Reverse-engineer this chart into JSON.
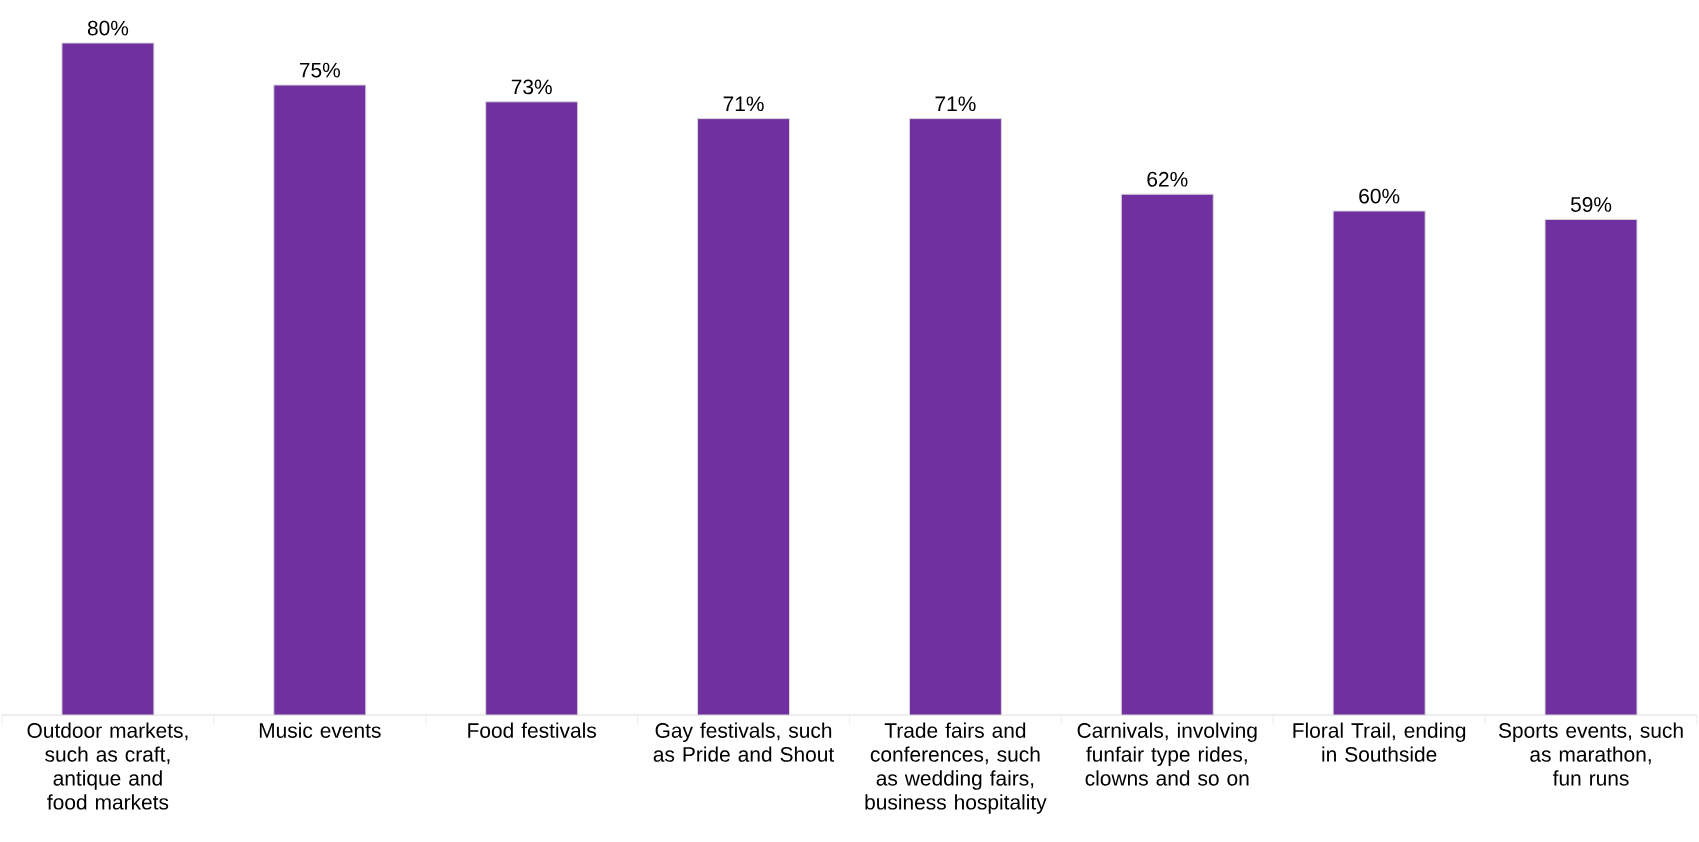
{
  "chart_data": {
    "type": "bar",
    "relative": false,
    "categories": [
      "Outdoor markets, such as craft, antique and food markets",
      "Music events",
      "Food festivals",
      "Gay festivals, such as Pride and Shout",
      "Trade fairs and conferences, such as wedding fairs, business hospitality",
      "Carnivals, involving funfair type rides, clowns and so on",
      "Floral Trail, ending in Southside",
      "Sports events, such as marathon, fun runs"
    ],
    "values": [
      80,
      75,
      73,
      71,
      71,
      62,
      60,
      59
    ],
    "value_labels": [
      "80%",
      "75%",
      "73%",
      "71%",
      "71%",
      "62%",
      "60%",
      "59%"
    ],
    "color": "#7030a0"
  }
}
